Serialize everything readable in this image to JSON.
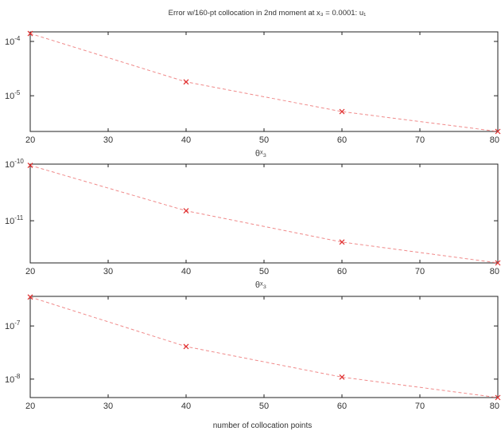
{
  "figure": {
    "title": "Error w/160-pt collocation in 2nd moment at x₃ = 0.0001: u₁",
    "xlabel": "number of collocation points",
    "subplot_labels": [
      "θˣ₃",
      "θˣ₃"
    ]
  },
  "chart_data": [
    {
      "type": "line",
      "x": [
        20,
        40,
        60,
        80
      ],
      "series": [
        {
          "values": [
            0.00014,
            1.8e-05,
            5.1e-06,
            2.2e-06
          ]
        }
      ],
      "xlim": [
        20,
        80
      ],
      "ylim": [
        2.2e-06,
        0.00015
      ],
      "yscale": "log",
      "xticks": [
        "20",
        "30",
        "40",
        "50",
        "60",
        "70",
        "80"
      ],
      "yticks": [
        {
          "value": 0.0001,
          "base": "10",
          "exp": "-4"
        },
        {
          "value": 1e-05,
          "base": "10",
          "exp": "-5"
        }
      ],
      "line_color": "#f08a8a",
      "marker_color": "#e03030",
      "grid": false
    },
    {
      "type": "line",
      "x": [
        20,
        40,
        60,
        80
      ],
      "series": [
        {
          "values": [
            9.5e-11,
            1.5e-11,
            4.2e-12,
            1.8e-12
          ]
        }
      ],
      "xlim": [
        20,
        80
      ],
      "ylim": [
        1.8e-12,
        1e-10
      ],
      "yscale": "log",
      "xticks": [
        "20",
        "30",
        "40",
        "50",
        "60",
        "70",
        "80"
      ],
      "yticks": [
        {
          "value": 1e-10,
          "base": "10",
          "exp": "-10"
        },
        {
          "value": 1e-11,
          "base": "10",
          "exp": "-11"
        }
      ],
      "line_color": "#f08a8a",
      "marker_color": "#e03030",
      "grid": false
    },
    {
      "type": "line",
      "x": [
        20,
        40,
        60,
        80
      ],
      "series": [
        {
          "values": [
            3.5e-07,
            4.1e-08,
            1.09e-08,
            4.5e-09
          ]
        }
      ],
      "xlim": [
        20,
        80
      ],
      "ylim": [
        4.5e-09,
        3.6e-07
      ],
      "yscale": "log",
      "xticks": [
        "20",
        "30",
        "40",
        "50",
        "60",
        "70",
        "80"
      ],
      "yticks": [
        {
          "value": 1e-07,
          "base": "10",
          "exp": "-7"
        },
        {
          "value": 1e-08,
          "base": "10",
          "exp": "-8"
        }
      ],
      "line_color": "#f08a8a",
      "marker_color": "#e03030",
      "grid": false
    }
  ]
}
